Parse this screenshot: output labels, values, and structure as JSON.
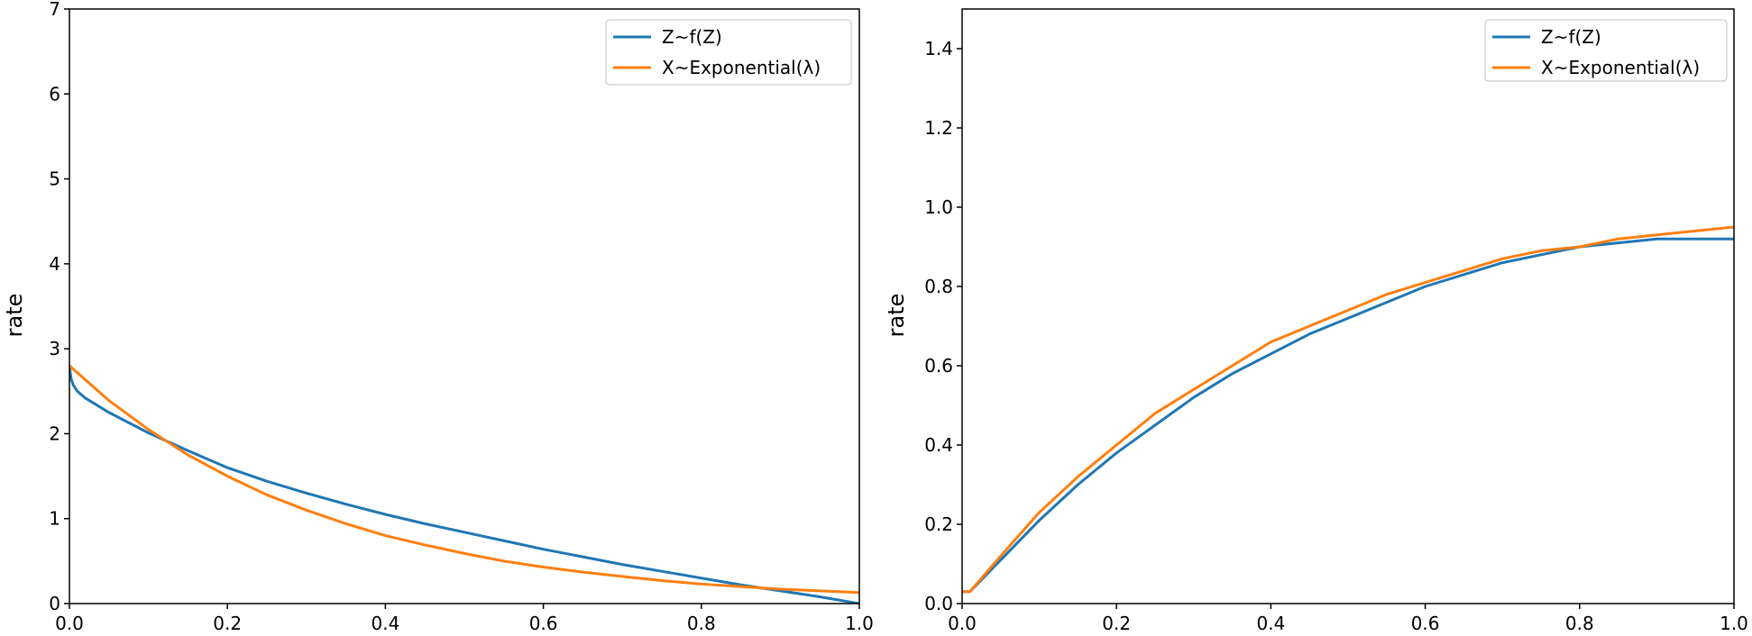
{
  "chart_data": [
    {
      "type": "line",
      "xlabel": "",
      "ylabel": "rate",
      "xlim": [
        0.0,
        1.0
      ],
      "ylim": [
        0,
        7
      ],
      "xticks": [
        "0.0",
        "0.2",
        "0.4",
        "0.6",
        "0.8",
        "1.0"
      ],
      "yticks": [
        "0",
        "1",
        "2",
        "3",
        "4",
        "5",
        "6",
        "7"
      ],
      "grid": false,
      "legend_position": "top-right",
      "series": [
        {
          "name": "Z~f(Z)",
          "color": "#1f77b4",
          "x": [
            0.0,
            0.002,
            0.005,
            0.01,
            0.02,
            0.05,
            0.1,
            0.15,
            0.2,
            0.25,
            0.3,
            0.35,
            0.4,
            0.45,
            0.5,
            0.55,
            0.6,
            0.65,
            0.7,
            0.75,
            0.8,
            0.85,
            0.9,
            0.95,
            1.0
          ],
          "y": [
            2.8,
            2.65,
            2.57,
            2.5,
            2.42,
            2.25,
            2.01,
            1.8,
            1.6,
            1.44,
            1.3,
            1.17,
            1.05,
            0.94,
            0.84,
            0.74,
            0.64,
            0.55,
            0.46,
            0.38,
            0.3,
            0.22,
            0.15,
            0.08,
            0.0
          ]
        },
        {
          "name": "X~Exponential(λ)",
          "color": "#ff7f0e",
          "x": [
            0.0,
            0.05,
            0.1,
            0.15,
            0.2,
            0.25,
            0.3,
            0.35,
            0.4,
            0.45,
            0.5,
            0.55,
            0.6,
            0.65,
            0.7,
            0.75,
            0.8,
            0.85,
            0.9,
            0.95,
            1.0
          ],
          "y": [
            2.8,
            2.39,
            2.05,
            1.75,
            1.5,
            1.28,
            1.1,
            0.94,
            0.8,
            0.69,
            0.59,
            0.5,
            0.43,
            0.37,
            0.32,
            0.27,
            0.23,
            0.2,
            0.17,
            0.15,
            0.13
          ]
        }
      ]
    },
    {
      "type": "line",
      "xlabel": "",
      "ylabel": "rate",
      "xlim": [
        0.0,
        1.0
      ],
      "ylim": [
        0,
        1.5
      ],
      "xticks": [
        "0.0",
        "0.2",
        "0.4",
        "0.6",
        "0.8",
        "1.0"
      ],
      "yticks": [
        "0.0",
        "0.2",
        "0.4",
        "0.6",
        "0.8",
        "1.0",
        "1.2",
        "1.4"
      ],
      "grid": false,
      "legend_position": "top-right",
      "series": [
        {
          "name": "Z~f(Z)",
          "color": "#1f77b4",
          "x": [
            0.0,
            0.01,
            0.05,
            0.1,
            0.15,
            0.2,
            0.25,
            0.3,
            0.35,
            0.4,
            0.45,
            0.5,
            0.55,
            0.6,
            0.65,
            0.7,
            0.75,
            0.8,
            0.85,
            0.9,
            0.95,
            1.0
          ],
          "y": [
            0.03,
            0.03,
            0.11,
            0.21,
            0.3,
            0.38,
            0.45,
            0.52,
            0.58,
            0.63,
            0.68,
            0.72,
            0.76,
            0.8,
            0.83,
            0.86,
            0.88,
            0.9,
            0.91,
            0.92,
            0.92,
            0.92
          ]
        },
        {
          "name": "X~Exponential(λ)",
          "color": "#ff7f0e",
          "x": [
            0.0,
            0.01,
            0.05,
            0.1,
            0.15,
            0.2,
            0.25,
            0.3,
            0.35,
            0.4,
            0.45,
            0.5,
            0.55,
            0.6,
            0.65,
            0.7,
            0.75,
            0.8,
            0.85,
            0.9,
            0.95,
            1.0
          ],
          "y": [
            0.03,
            0.03,
            0.12,
            0.23,
            0.32,
            0.4,
            0.48,
            0.54,
            0.6,
            0.66,
            0.7,
            0.74,
            0.78,
            0.81,
            0.84,
            0.87,
            0.89,
            0.9,
            0.92,
            0.93,
            0.94,
            0.95
          ]
        }
      ]
    }
  ]
}
